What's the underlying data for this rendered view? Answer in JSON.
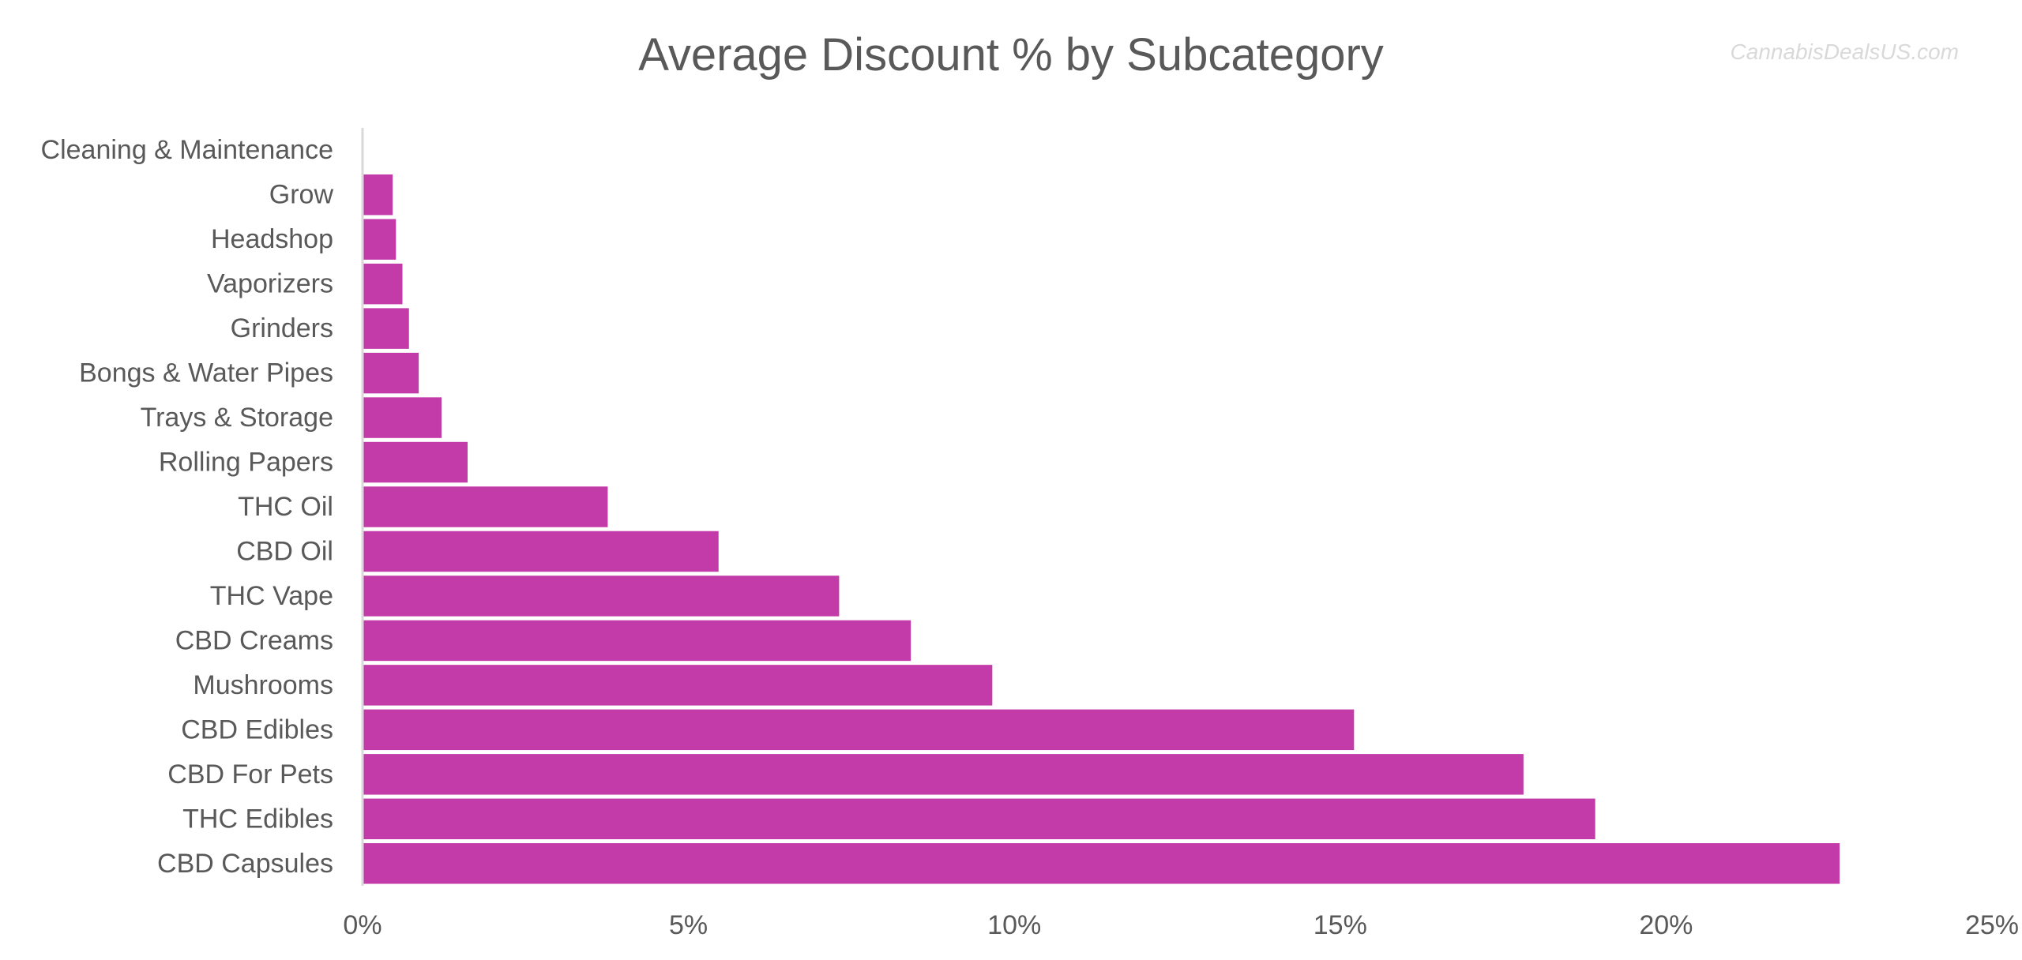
{
  "chart_data": {
    "type": "bar",
    "orientation": "horizontal",
    "title": "Average Discount % by Subcategory",
    "watermark": "CannabisDealsUS.com",
    "categories": [
      "Cleaning & Maintenance",
      "Grow",
      "Headshop",
      "Vaporizers",
      "Grinders",
      "Bongs & Water Pipes",
      "Trays & Storage",
      "Rolling Papers",
      "THC Oil",
      "CBD Oil",
      "THC Vape",
      "CBD Creams",
      "Mushrooms",
      "CBD Edibles",
      "CBD For Pets",
      "THC Edibles",
      "CBD Capsules"
    ],
    "values": [
      0.0,
      0.45,
      0.5,
      0.6,
      0.7,
      0.85,
      1.2,
      1.6,
      3.75,
      5.45,
      7.3,
      8.4,
      9.65,
      15.2,
      17.8,
      18.9,
      22.65
    ],
    "xlim": [
      0,
      25
    ],
    "xticks": [
      "0%",
      "5%",
      "10%",
      "15%",
      "20%",
      "25%"
    ],
    "xtick_values": [
      0,
      5,
      10,
      15,
      20,
      25
    ],
    "grid": false,
    "legend": "none",
    "bar_color": "#c33ba8",
    "text_color": "#595959",
    "axis_color": "#d9d9d9"
  }
}
